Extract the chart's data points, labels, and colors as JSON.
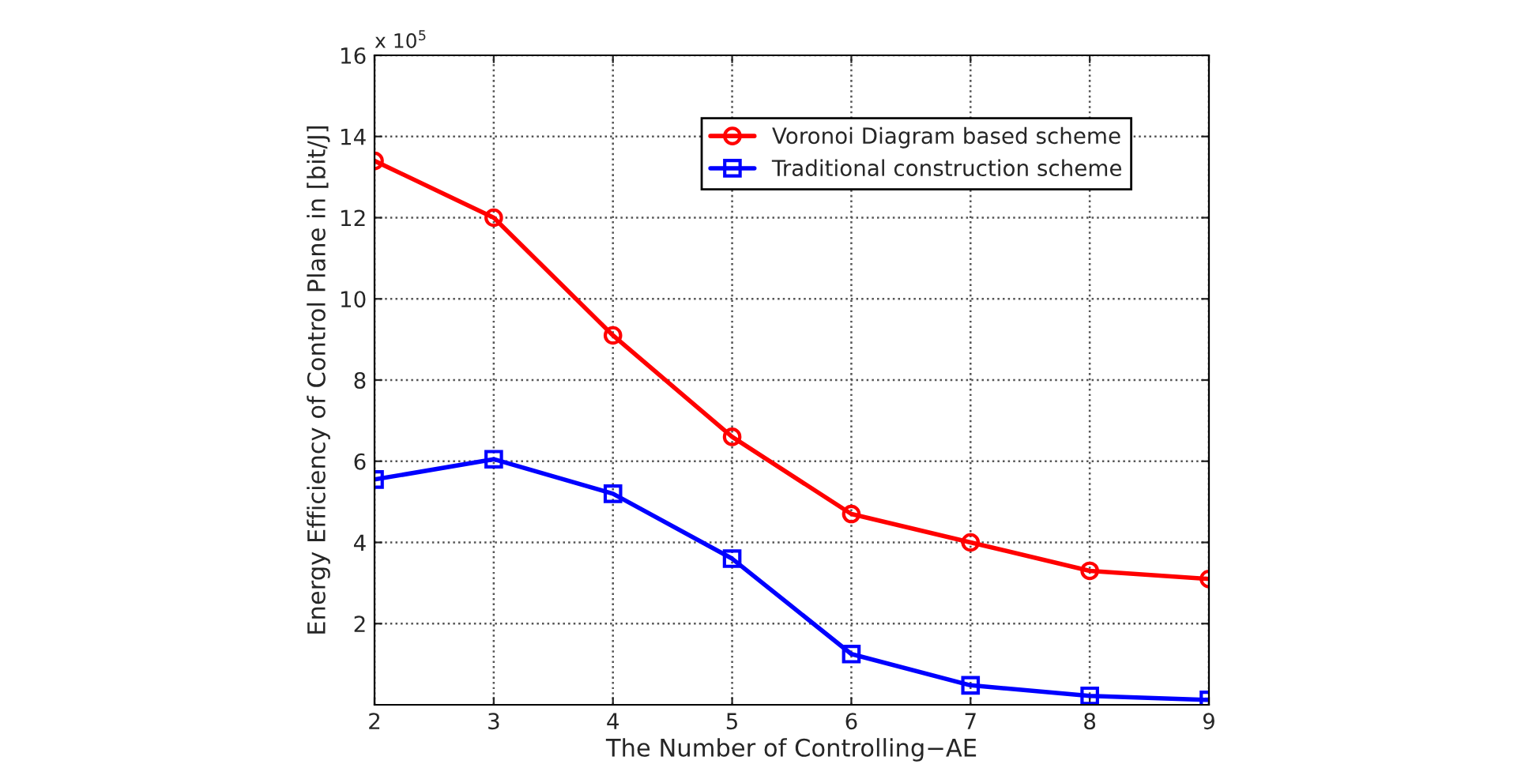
{
  "chart_data": {
    "type": "line",
    "xlabel": "The Number of Controlling−AE",
    "ylabel": "Energy Efficiency of Control Plane in [bit/J]",
    "annotations": [
      "x 10$^{5}$"
    ],
    "x": [
      2,
      3,
      4,
      5,
      6,
      7,
      8,
      9
    ],
    "series": [
      {
        "name": "Voronoi Diagram based scheme",
        "color": "#ff0000",
        "marker": "circle",
        "values": [
          13.4,
          12.0,
          9.1,
          6.6,
          4.7,
          4.0,
          3.3,
          3.1
        ]
      },
      {
        "name": "Traditional construction scheme",
        "color": "#0000ff",
        "marker": "square",
        "values": [
          5.55,
          6.05,
          5.2,
          3.6,
          1.25,
          0.48,
          0.22,
          0.12
        ]
      }
    ],
    "xlim": [
      2,
      9
    ],
    "xticks": [
      2,
      3,
      4,
      5,
      6,
      7,
      8,
      9
    ],
    "ylim": [
      0,
      16
    ],
    "yticks": [
      2,
      4,
      6,
      8,
      10,
      12,
      14,
      16
    ],
    "grid": true,
    "legend": "top right",
    "line_style": "solid"
  }
}
